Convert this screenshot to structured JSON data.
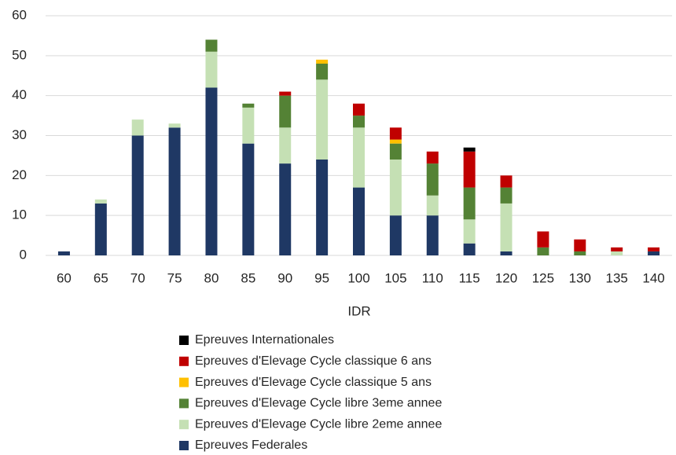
{
  "chart_data": {
    "type": "stacked_bar",
    "categories": [
      60,
      65,
      70,
      75,
      80,
      85,
      90,
      95,
      100,
      105,
      110,
      115,
      120,
      125,
      130,
      135,
      140
    ],
    "x_label": "IDR",
    "ylim": [
      0,
      60
    ],
    "yticks": [
      0,
      10,
      20,
      30,
      40,
      50,
      60
    ],
    "grid": true,
    "series": [
      {
        "name": "Epreuves Federales",
        "color": "#1f3864",
        "values": [
          1,
          13,
          30,
          32,
          42,
          28,
          23,
          24,
          17,
          10,
          10,
          3,
          1,
          0,
          0,
          0,
          1
        ]
      },
      {
        "name": "Epreuves d'Elevage Cycle libre 2eme annee",
        "color": "#c5e0b4",
        "values": [
          0,
          1,
          4,
          1,
          9,
          9,
          9,
          20,
          15,
          14,
          5,
          6,
          12,
          0,
          0,
          1,
          0
        ]
      },
      {
        "name": "Epreuves d'Elevage Cycle libre 3eme annee",
        "color": "#548235",
        "values": [
          0,
          0,
          0,
          0,
          3,
          1,
          8,
          4,
          3,
          4,
          8,
          8,
          4,
          2,
          1,
          0,
          0
        ]
      },
      {
        "name": "Epreuves d'Elevage Cycle classique 5 ans",
        "color": "#ffc000",
        "values": [
          0,
          0,
          0,
          0,
          0,
          0,
          0,
          1,
          0,
          1,
          0,
          0,
          0,
          0,
          0,
          0,
          0
        ]
      },
      {
        "name": "Epreuves d'Elevage Cycle classique 6 ans",
        "color": "#c00000",
        "values": [
          0,
          0,
          0,
          0,
          0,
          0,
          1,
          0,
          3,
          3,
          3,
          9,
          3,
          4,
          3,
          1,
          1
        ]
      },
      {
        "name": "Epreuves Internationales",
        "color": "#000000",
        "values": [
          0,
          0,
          0,
          0,
          0,
          0,
          0,
          0,
          0,
          0,
          0,
          1,
          0,
          0,
          0,
          0,
          0
        ]
      }
    ]
  }
}
